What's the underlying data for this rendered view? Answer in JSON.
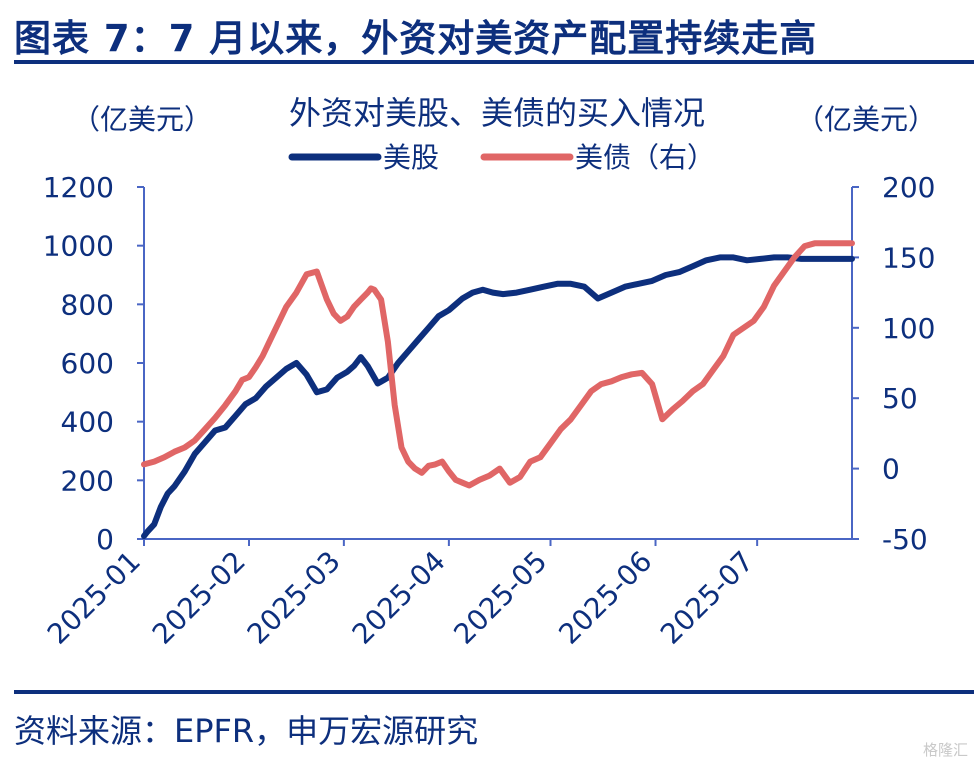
{
  "figure": {
    "title": "图表 7：7 月以来，外资对美资产配置持续走高",
    "source": "资料来源：EPFR，申万宏源研究",
    "watermark": "格隆汇"
  },
  "colors": {
    "navy": "#0d2f7d",
    "red": "#e06666",
    "axis": "#4a66c4"
  },
  "chart_data": {
    "type": "line",
    "title": "外资对美股、美债的买入情况",
    "ylabel_left": "（亿美元）",
    "ylabel_right": "（亿美元）",
    "ylim_left": [
      0,
      1200
    ],
    "ylim_right": [
      -50,
      200
    ],
    "yticks_left": [
      "0",
      "200",
      "400",
      "600",
      "800",
      "1000",
      "1200"
    ],
    "yticks_right": [
      "-50",
      "0",
      "50",
      "100",
      "150",
      "200"
    ],
    "xticks": [
      "2025-01",
      "2025-02",
      "2025-03",
      "2025-04",
      "2025-05",
      "2025-06",
      "2025-07"
    ],
    "x_range_days": [
      0,
      209
    ],
    "series": [
      {
        "name": "美股",
        "axis": "left",
        "color": "#0d2f7d",
        "x": [
          0,
          1,
          3,
          5,
          7,
          9,
          12,
          15,
          18,
          21,
          24,
          27,
          30,
          33,
          36,
          39,
          42,
          45,
          48,
          51,
          54,
          57,
          60,
          62,
          64,
          66,
          69,
          72,
          75,
          78,
          81,
          84,
          87,
          90,
          92,
          94,
          97,
          100,
          103,
          106,
          110,
          114,
          118,
          122,
          126,
          130,
          134,
          138,
          142,
          146,
          150,
          154,
          158,
          162,
          166,
          170,
          174,
          178,
          182,
          186,
          190,
          194,
          197,
          200,
          203,
          206,
          209
        ],
        "values": [
          10,
          25,
          50,
          110,
          155,
          180,
          230,
          290,
          330,
          370,
          380,
          420,
          460,
          480,
          520,
          550,
          580,
          600,
          560,
          500,
          510,
          550,
          570,
          590,
          620,
          590,
          530,
          550,
          600,
          640,
          680,
          720,
          760,
          780,
          800,
          820,
          840,
          850,
          840,
          835,
          840,
          850,
          860,
          870,
          870,
          860,
          820,
          840,
          860,
          870,
          880,
          900,
          910,
          930,
          950,
          960,
          960,
          950,
          955,
          960,
          960,
          955,
          955,
          955,
          955,
          955,
          955
        ]
      },
      {
        "name": "美债（右）",
        "axis": "right",
        "color": "#e06666",
        "x": [
          0,
          3,
          6,
          9,
          12,
          15,
          18,
          21,
          24,
          27,
          29,
          31,
          33,
          35,
          37,
          39,
          42,
          45,
          48,
          51,
          54,
          56,
          58,
          60,
          62,
          64,
          66,
          67,
          68,
          70,
          72,
          74,
          76,
          78,
          80,
          82,
          84,
          86,
          88,
          90,
          92,
          94,
          96,
          99,
          102,
          105,
          108,
          111,
          114,
          117,
          120,
          123,
          126,
          129,
          132,
          135,
          138,
          141,
          144,
          147,
          150,
          153,
          156,
          159,
          162,
          165,
          168,
          171,
          174,
          177,
          180,
          183,
          186,
          189,
          192,
          195,
          198,
          200,
          202,
          204,
          206,
          208,
          209
        ],
        "values": [
          3,
          5,
          8,
          12,
          15,
          20,
          28,
          36,
          45,
          55,
          63,
          65,
          72,
          80,
          90,
          100,
          115,
          125,
          138,
          140,
          120,
          110,
          105,
          108,
          115,
          120,
          125,
          128,
          127,
          120,
          90,
          45,
          15,
          5,
          0,
          -3,
          2,
          3,
          5,
          -2,
          -8,
          -10,
          -12,
          -8,
          -5,
          0,
          -10,
          -6,
          5,
          8,
          18,
          28,
          35,
          45,
          55,
          60,
          62,
          65,
          67,
          68,
          60,
          35,
          42,
          48,
          55,
          60,
          70,
          80,
          95,
          100,
          105,
          115,
          130,
          140,
          150,
          158,
          160,
          160,
          160,
          160,
          160,
          160,
          160
        ]
      }
    ]
  }
}
